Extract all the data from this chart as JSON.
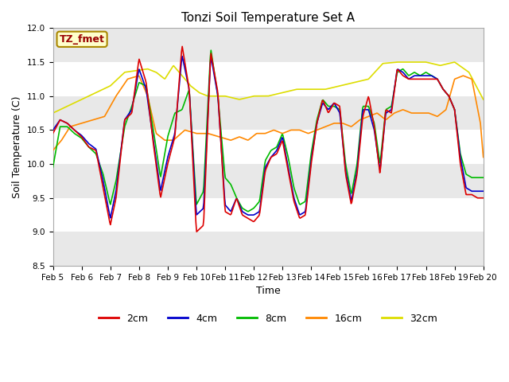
{
  "title": "Tonzi Soil Temperature Set A",
  "xlabel": "Time",
  "ylabel": "Soil Temperature (C)",
  "ylim": [
    8.5,
    12.0
  ],
  "fig_facecolor": "#ffffff",
  "plot_bg_color": "#ffffff",
  "band_colors": [
    "#e8e8e8",
    "#ffffff"
  ],
  "annotation_text": "TZ_fmet",
  "annotation_bg": "#ffffcc",
  "annotation_border": "#aa8800",
  "annotation_text_color": "#990000",
  "series_colors": {
    "2cm": "#dd0000",
    "4cm": "#0000cc",
    "8cm": "#00bb00",
    "16cm": "#ff8800",
    "32cm": "#dddd00"
  },
  "xtick_labels": [
    "Feb 5",
    "Feb 6",
    "Feb 7",
    "Feb 8",
    "Feb 9",
    "Feb 10",
    "Feb 11",
    "Feb 12",
    "Feb 13",
    "Feb 14",
    "Feb 15",
    "Feb 16",
    "Feb 17",
    "Feb 18",
    "Feb 19",
    "Feb 20"
  ],
  "legend_entries": [
    "2cm",
    "4cm",
    "8cm",
    "16cm",
    "32cm"
  ],
  "linewidth": 1.2,
  "title_fontsize": 11,
  "label_fontsize": 9,
  "tick_fontsize": 7.5,
  "legend_fontsize": 9
}
